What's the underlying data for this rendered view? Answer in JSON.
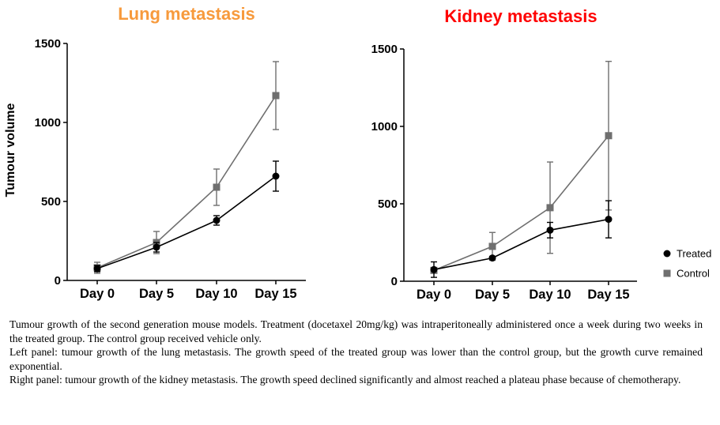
{
  "chart_data": [
    {
      "type": "line",
      "title": "Lung metastasis",
      "title_color": "#f79a3c",
      "ylabel": "Tumour volume",
      "xlabel": "",
      "categories": [
        "Day 0",
        "Day 5",
        "Day 10",
        "Day 15"
      ],
      "ylim": [
        0,
        1500
      ],
      "yticks": [
        "0",
        "500",
        "1000",
        "1500"
      ],
      "series": [
        {
          "name": "Treated",
          "color": "#000000",
          "marker": "circle",
          "values": [
            75,
            210,
            380,
            660
          ],
          "error": [
            20,
            30,
            30,
            95
          ]
        },
        {
          "name": "Control",
          "color": "#6f6f6f",
          "marker": "square",
          "values": [
            80,
            240,
            590,
            1170
          ],
          "error": [
            35,
            70,
            115,
            215
          ]
        }
      ],
      "grid": false
    },
    {
      "type": "line",
      "title": "Kidney metastasis",
      "title_color": "#ff0000",
      "ylabel": "",
      "xlabel": "",
      "categories": [
        "Day 0",
        "Day 5",
        "Day 10",
        "Day 15"
      ],
      "ylim": [
        0,
        1500
      ],
      "yticks": [
        "0",
        "500",
        "1000",
        "1500"
      ],
      "series": [
        {
          "name": "Treated",
          "color": "#000000",
          "marker": "circle",
          "values": [
            75,
            150,
            330,
            400
          ],
          "error": [
            50,
            10,
            50,
            120
          ]
        },
        {
          "name": "Control",
          "color": "#6f6f6f",
          "marker": "square",
          "values": [
            70,
            225,
            475,
            940
          ],
          "error": [
            10,
            90,
            295,
            480
          ]
        }
      ],
      "grid": false,
      "legend": "right"
    }
  ],
  "legend": [
    {
      "label": "Treated",
      "color": "#000000",
      "marker": "circle"
    },
    {
      "label": "Control",
      "color": "#6f6f6f",
      "marker": "square"
    }
  ],
  "caption": [
    "Tumour growth of the second generation mouse models. Treatment (docetaxel 20mg/kg) was intraperitoneally administered once a week during two weeks in the treated group. The control group received vehicle only.",
    "Left panel: tumour growth of the lung metastasis. The growth speed of the treated group was lower than the control group, but the growth curve remained exponential.",
    "Right panel: tumour growth of the kidney metastasis. The growth speed declined significantly and almost reached a plateau phase because of chemotherapy."
  ]
}
